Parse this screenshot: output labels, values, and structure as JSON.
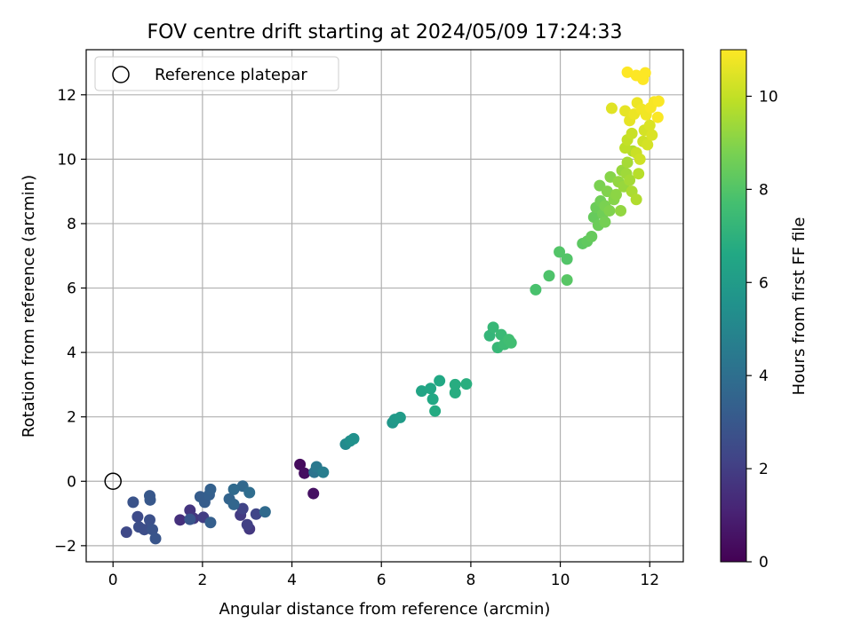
{
  "chart_data": {
    "type": "scatter",
    "title": "FOV centre drift starting at 2024/05/09 17:24:33",
    "xlabel": "Angular distance from reference (arcmin)",
    "ylabel": "Rotation from reference (arcmin)",
    "xlim": [
      -0.6,
      12.75
    ],
    "ylim": [
      -2.5,
      13.4
    ],
    "xticks": [
      0,
      2,
      4,
      6,
      8,
      10,
      12
    ],
    "yticks": [
      -2,
      0,
      2,
      4,
      6,
      8,
      10,
      12
    ],
    "grid": true,
    "legend": {
      "placement": "top-left",
      "entries": [
        "Reference platepar"
      ]
    },
    "reference_point": {
      "x": 0,
      "y": 0
    },
    "colorbar": {
      "label": "Hours from first FF file",
      "range": [
        0,
        11
      ],
      "ticks": [
        0,
        2,
        4,
        6,
        8,
        10
      ],
      "colormap": "viridis"
    },
    "points": [
      [
        4.18,
        0.52,
        0.3
      ],
      [
        4.28,
        0.25,
        0.4
      ],
      [
        4.48,
        -0.38,
        0.5
      ],
      [
        1.5,
        -1.2,
        1.5
      ],
      [
        1.72,
        -0.9,
        1.7
      ],
      [
        1.8,
        -1.15,
        1.8
      ],
      [
        2.02,
        -1.12,
        2.0
      ],
      [
        2.85,
        -1.05,
        1.9
      ],
      [
        3.05,
        -1.48,
        1.8
      ],
      [
        2.9,
        -0.85,
        2.2
      ],
      [
        3.2,
        -1.02,
        2.3
      ],
      [
        3.0,
        -1.35,
        2.1
      ],
      [
        0.3,
        -1.58,
        2.4
      ],
      [
        0.55,
        -1.1,
        2.5
      ],
      [
        0.58,
        -1.42,
        2.6
      ],
      [
        0.7,
        -1.5,
        2.6
      ],
      [
        0.82,
        -1.2,
        2.7
      ],
      [
        0.88,
        -1.5,
        2.8
      ],
      [
        0.95,
        -1.78,
        2.9
      ],
      [
        0.45,
        -0.65,
        2.8
      ],
      [
        0.82,
        -0.45,
        3.0
      ],
      [
        0.83,
        -0.58,
        3.0
      ],
      [
        1.72,
        -1.18,
        2.9
      ],
      [
        1.95,
        -0.48,
        3.2
      ],
      [
        2.05,
        -0.65,
        3.2
      ],
      [
        2.15,
        -0.42,
        3.3
      ],
      [
        2.18,
        -0.25,
        3.4
      ],
      [
        2.18,
        -1.28,
        3.3
      ],
      [
        2.6,
        -0.55,
        3.5
      ],
      [
        2.7,
        -0.72,
        3.6
      ],
      [
        2.9,
        -0.15,
        3.7
      ],
      [
        2.7,
        -0.25,
        3.8
      ],
      [
        3.05,
        -0.35,
        3.9
      ],
      [
        3.4,
        -0.95,
        3.8
      ],
      [
        4.5,
        0.28,
        4.2
      ],
      [
        4.55,
        0.45,
        4.4
      ],
      [
        4.7,
        0.28,
        4.6
      ],
      [
        5.2,
        1.15,
        5.2
      ],
      [
        5.3,
        1.25,
        5.4
      ],
      [
        5.38,
        1.32,
        5.5
      ],
      [
        6.25,
        1.82,
        5.8
      ],
      [
        6.3,
        1.92,
        5.9
      ],
      [
        6.42,
        1.98,
        6.0
      ],
      [
        6.9,
        2.8,
        6.4
      ],
      [
        7.1,
        2.88,
        6.5
      ],
      [
        7.3,
        3.12,
        6.6
      ],
      [
        7.15,
        2.55,
        6.6
      ],
      [
        7.2,
        2.18,
        6.7
      ],
      [
        7.65,
        3.0,
        6.8
      ],
      [
        7.65,
        2.75,
        6.8
      ],
      [
        7.9,
        3.02,
        6.9
      ],
      [
        8.42,
        4.52,
        7.2
      ],
      [
        8.5,
        4.78,
        7.3
      ],
      [
        8.6,
        4.15,
        7.3
      ],
      [
        8.68,
        4.55,
        7.4
      ],
      [
        8.75,
        4.25,
        7.5
      ],
      [
        8.85,
        4.4,
        7.6
      ],
      [
        8.9,
        4.3,
        7.6
      ],
      [
        9.45,
        5.95,
        7.8
      ],
      [
        9.75,
        6.38,
        7.9
      ],
      [
        9.98,
        7.12,
        8.0
      ],
      [
        10.15,
        6.9,
        8.0
      ],
      [
        10.15,
        6.25,
        8.1
      ],
      [
        10.5,
        7.38,
        8.2
      ],
      [
        10.6,
        7.45,
        8.3
      ],
      [
        10.7,
        7.6,
        8.4
      ],
      [
        10.75,
        8.2,
        8.4
      ],
      [
        10.8,
        8.5,
        8.5
      ],
      [
        10.85,
        7.95,
        8.5
      ],
      [
        10.9,
        8.7,
        8.6
      ],
      [
        10.95,
        8.3,
        8.6
      ],
      [
        11.0,
        8.05,
        8.7
      ],
      [
        11.0,
        8.55,
        8.8
      ],
      [
        10.88,
        9.18,
        8.8
      ],
      [
        11.05,
        9.0,
        8.9
      ],
      [
        11.1,
        8.4,
        8.9
      ],
      [
        11.12,
        9.45,
        9.0
      ],
      [
        11.2,
        8.75,
        9.0
      ],
      [
        11.25,
        8.9,
        9.1
      ],
      [
        11.3,
        9.3,
        9.2
      ],
      [
        11.35,
        8.4,
        9.2
      ],
      [
        11.38,
        9.65,
        9.3
      ],
      [
        11.42,
        9.15,
        9.3
      ],
      [
        11.48,
        9.55,
        9.4
      ],
      [
        11.5,
        9.9,
        9.5
      ],
      [
        11.55,
        9.35,
        9.5
      ],
      [
        11.6,
        9.0,
        9.6
      ],
      [
        11.62,
        10.25,
        9.7
      ],
      [
        11.7,
        8.75,
        9.7
      ],
      [
        11.75,
        9.55,
        9.8
      ],
      [
        11.45,
        10.35,
        9.9
      ],
      [
        11.5,
        10.6,
        10.0
      ],
      [
        11.6,
        10.8,
        10.1
      ],
      [
        11.7,
        10.2,
        10.1
      ],
      [
        11.78,
        10.0,
        10.2
      ],
      [
        11.85,
        10.55,
        10.2
      ],
      [
        11.88,
        10.9,
        10.3
      ],
      [
        11.95,
        10.45,
        10.3
      ],
      [
        12.0,
        11.05,
        10.4
      ],
      [
        12.05,
        10.75,
        10.4
      ],
      [
        11.15,
        11.58,
        10.5
      ],
      [
        11.45,
        11.5,
        10.6
      ],
      [
        11.55,
        11.2,
        10.6
      ],
      [
        11.65,
        11.4,
        10.7
      ],
      [
        11.72,
        11.75,
        10.7
      ],
      [
        11.82,
        11.55,
        10.8
      ],
      [
        11.92,
        11.38,
        10.8
      ],
      [
        12.02,
        11.6,
        10.9
      ],
      [
        12.1,
        11.78,
        10.9
      ],
      [
        12.18,
        11.3,
        10.95
      ],
      [
        12.2,
        11.8,
        10.95
      ],
      [
        11.5,
        12.7,
        11.0
      ],
      [
        11.7,
        12.6,
        11.0
      ],
      [
        11.85,
        12.48,
        11.0
      ],
      [
        11.9,
        12.68,
        11.0
      ]
    ]
  }
}
